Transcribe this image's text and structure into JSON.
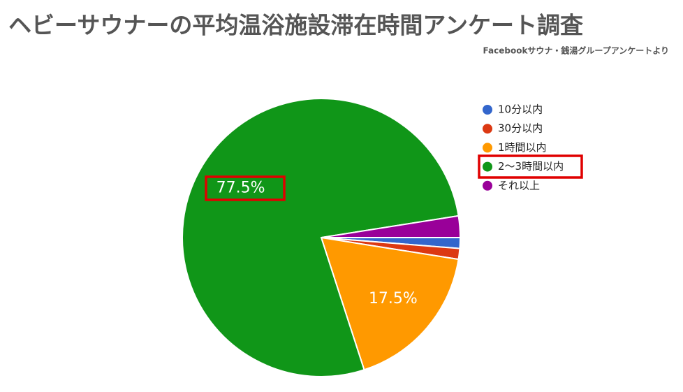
{
  "chart_data": {
    "type": "pie",
    "title": "ヘビーサウナーの平均温浴施設滞在時間アンケート調査",
    "subtitle": "Facebookサウナ・銭湯グループアンケートより",
    "categories": [
      "10分以内",
      "30分以内",
      "1時間以内",
      "2〜3時間以内",
      "それ以上"
    ],
    "values": [
      1.25,
      1.25,
      17.5,
      77.5,
      2.5
    ],
    "value_labels": [
      null,
      null,
      "17.5%",
      "77.5%",
      null
    ],
    "colors": [
      "#3366cc",
      "#dc3912",
      "#ff9900",
      "#109618",
      "#990099"
    ],
    "legend": "right"
  }
}
